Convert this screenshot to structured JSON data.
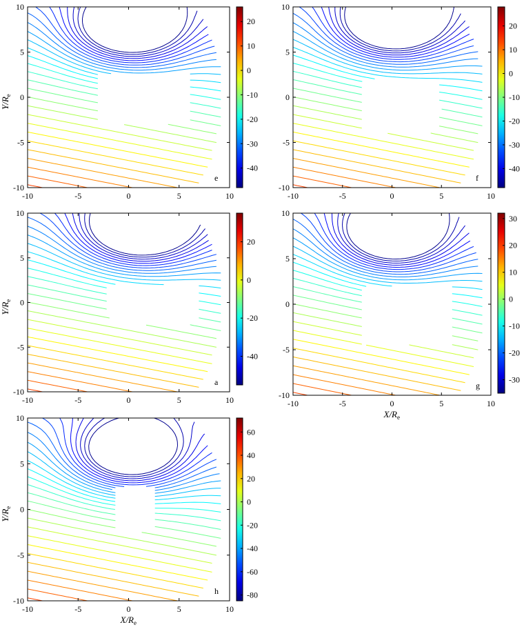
{
  "chart_data": [
    {
      "type": "contour",
      "panel_label": "e",
      "xlim": [
        -10,
        10
      ],
      "ylim": [
        -10,
        10
      ],
      "x_ticks": [
        -10,
        -5,
        0,
        5,
        10
      ],
      "y_ticks": [
        -10,
        -5,
        0,
        5,
        10
      ],
      "ylabel": "Y/R_e",
      "xlabel": "",
      "colorbar_ticks": [
        20,
        10,
        0,
        -10,
        -20,
        -30,
        -40
      ],
      "colorbar_range": [
        -48,
        26
      ],
      "colormap": "jet",
      "vortex_center": [
        0,
        7.5
      ],
      "inner_hole": {
        "x_min": -3,
        "x_max": 6,
        "y_min": -3,
        "y_max": 2.6
      }
    },
    {
      "type": "contour",
      "panel_label": "f",
      "xlim": [
        -10,
        10
      ],
      "ylim": [
        -10,
        10
      ],
      "x_ticks": [
        -10,
        -5,
        0,
        5,
        10
      ],
      "y_ticks": [
        -10,
        -5,
        0,
        5,
        10
      ],
      "ylabel": "",
      "xlabel": "",
      "colorbar_ticks": [
        20,
        10,
        0,
        -10,
        -20,
        -30,
        -40
      ],
      "colorbar_range": [
        -48,
        28
      ],
      "colormap": "jet",
      "vortex_center": [
        0,
        8
      ],
      "inner_hole": {
        "x_min": -3,
        "x_max": 5,
        "y_min": -4,
        "y_max": 2
      }
    },
    {
      "type": "contour",
      "panel_label": "a",
      "xlim": [
        -10,
        10
      ],
      "ylim": [
        -10,
        10
      ],
      "x_ticks": [
        -10,
        -5,
        0,
        5,
        10
      ],
      "y_ticks": [
        -10,
        -5,
        0,
        5,
        10
      ],
      "ylabel": "Y/R_e",
      "xlabel": "",
      "colorbar_ticks": [
        20,
        0,
        -20,
        -40
      ],
      "colorbar_range": [
        -55,
        35
      ],
      "colormap": "jet",
      "vortex_center": [
        1,
        8
      ],
      "inner_hole": {
        "x_min": -2,
        "x_max": 7,
        "y_min": -2.5,
        "y_max": 2
      }
    },
    {
      "type": "contour",
      "panel_label": "g",
      "xlim": [
        -10,
        10
      ],
      "ylim": [
        -10,
        10
      ],
      "x_ticks": [
        -10,
        -5,
        0,
        5,
        10
      ],
      "y_ticks": [
        -10,
        -5,
        0,
        5,
        10
      ],
      "ylabel": "",
      "xlabel": "X/R_e",
      "colorbar_ticks": [
        30,
        20,
        10,
        0,
        -10,
        -20,
        -30
      ],
      "colorbar_range": [
        -35,
        32
      ],
      "colormap": "jet",
      "vortex_center": [
        0,
        7.5
      ],
      "inner_hole": {
        "x_min": -3,
        "x_max": 6,
        "y_min": -4.5,
        "y_max": 2
      }
    },
    {
      "type": "contour",
      "panel_label": "h",
      "xlim": [
        -10,
        10
      ],
      "ylim": [
        -10,
        10
      ],
      "x_ticks": [
        -10,
        -5,
        0,
        5,
        10
      ],
      "y_ticks": [
        -10,
        -5,
        0,
        5,
        10
      ],
      "ylabel": "Y/R_e",
      "xlabel": "X/R_e",
      "colorbar_ticks": [
        60,
        40,
        20,
        0,
        -20,
        -40,
        -60,
        -80
      ],
      "colorbar_range": [
        -85,
        72
      ],
      "colormap": "jet",
      "vortex_center": [
        0,
        6
      ],
      "inner_hole": {
        "x_min": -1.5,
        "x_max": 2.5,
        "y_min": -2.5,
        "y_max": 2.5
      }
    }
  ]
}
